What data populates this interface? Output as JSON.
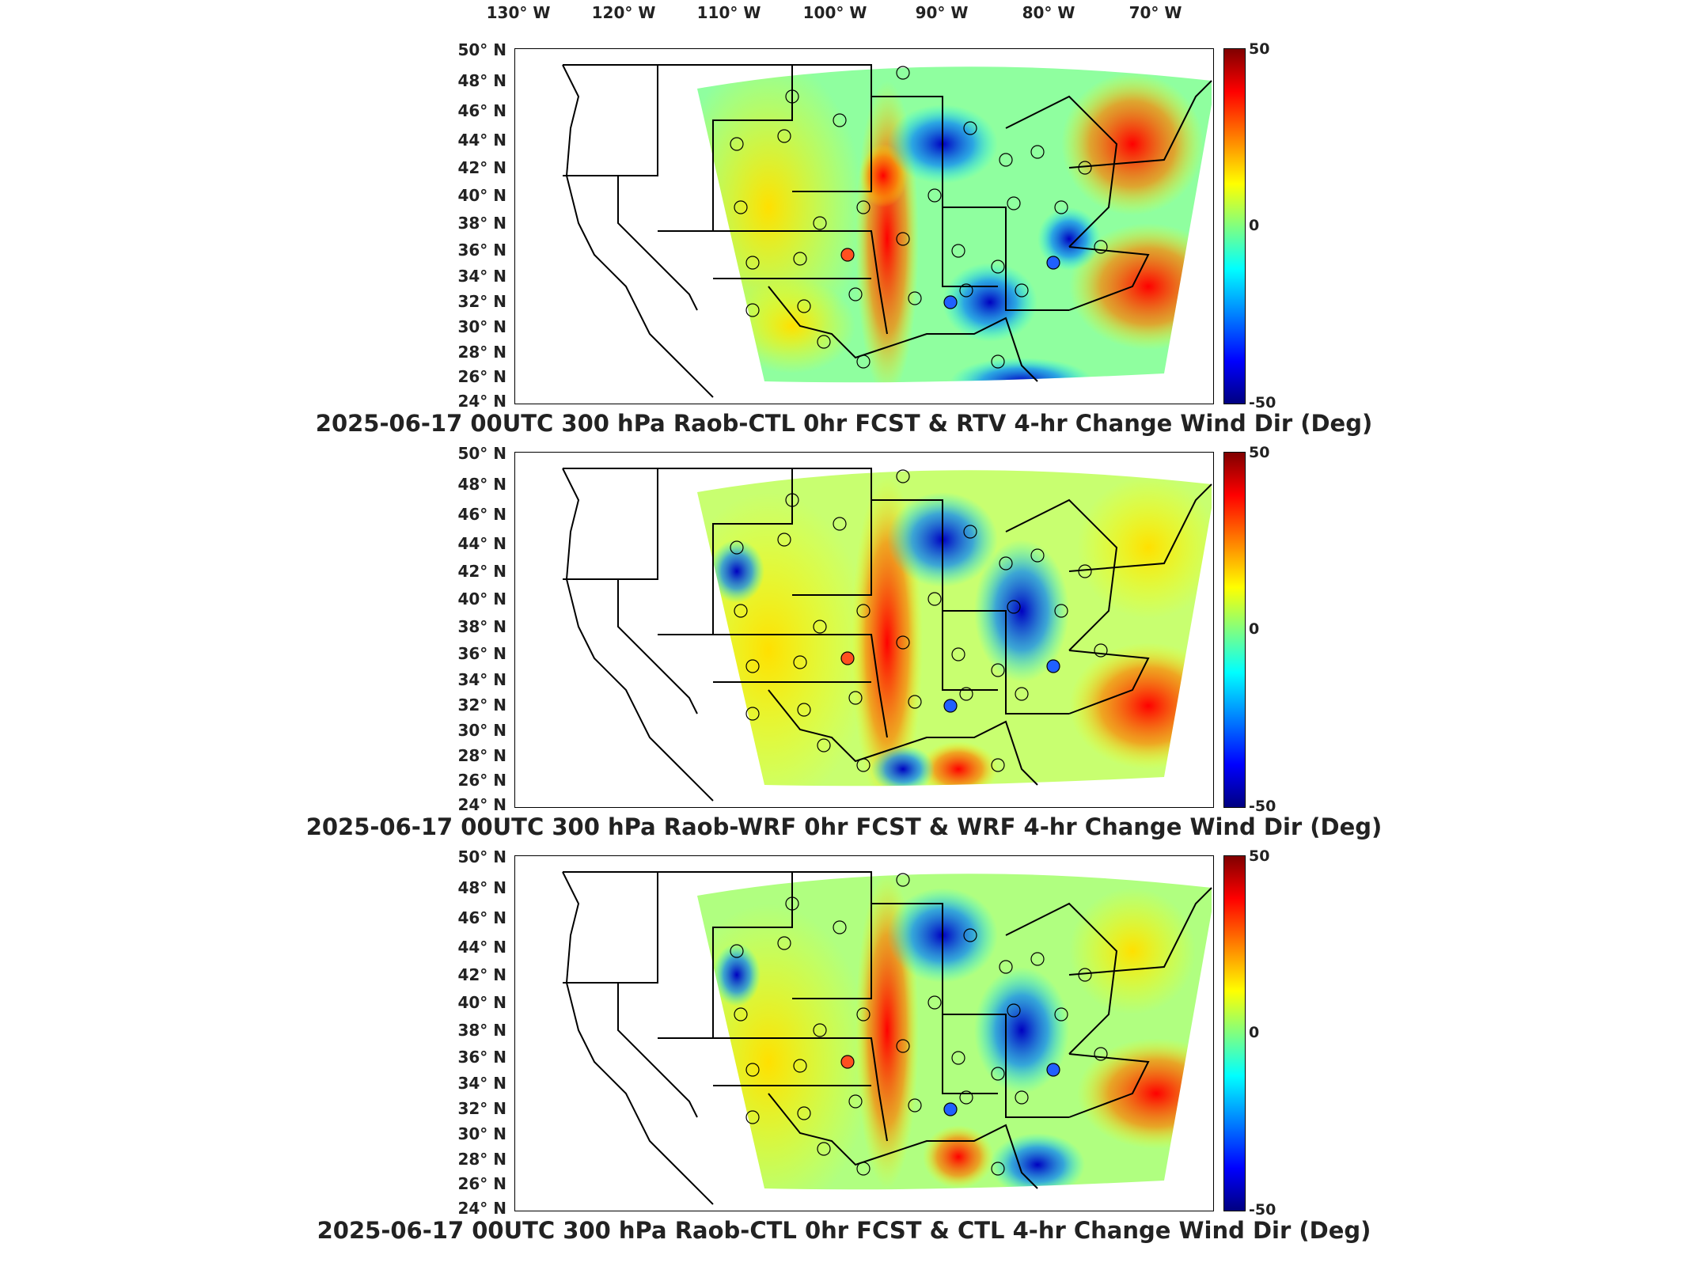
{
  "longitude_labels": [
    "130° W",
    "120° W",
    "110° W",
    "100° W",
    "90° W",
    "80° W",
    "70° W"
  ],
  "latitude_labels": [
    "50° N",
    "48° N",
    "46° N",
    "44° N",
    "42° N",
    "40° N",
    "38° N",
    "36° N",
    "34° N",
    "32° N",
    "30° N",
    "28° N",
    "26° N",
    "24° N"
  ],
  "colorbar_ticks": [
    "50",
    "0",
    "-50"
  ],
  "panels": [
    {
      "title": "2025-06-17 00UTC 300 hPa Raob-CTL 0hr FCST & RTV 4-hr Change Wind Dir (Deg)"
    },
    {
      "title": "2025-06-17 00UTC 300 hPa Raob-WRF 0hr FCST & WRF 4-hr Change Wind Dir (Deg)"
    },
    {
      "title": "2025-06-17 00UTC 300 hPa Raob-CTL 0hr FCST & CTL 4-hr Change Wind Dir (Deg)"
    }
  ],
  "colorbar_colors": [
    "#800000",
    "#ff0000",
    "#ff8000",
    "#ffff00",
    "#80ff80",
    "#00ffff",
    "#0080ff",
    "#0000ff",
    "#000080"
  ]
}
